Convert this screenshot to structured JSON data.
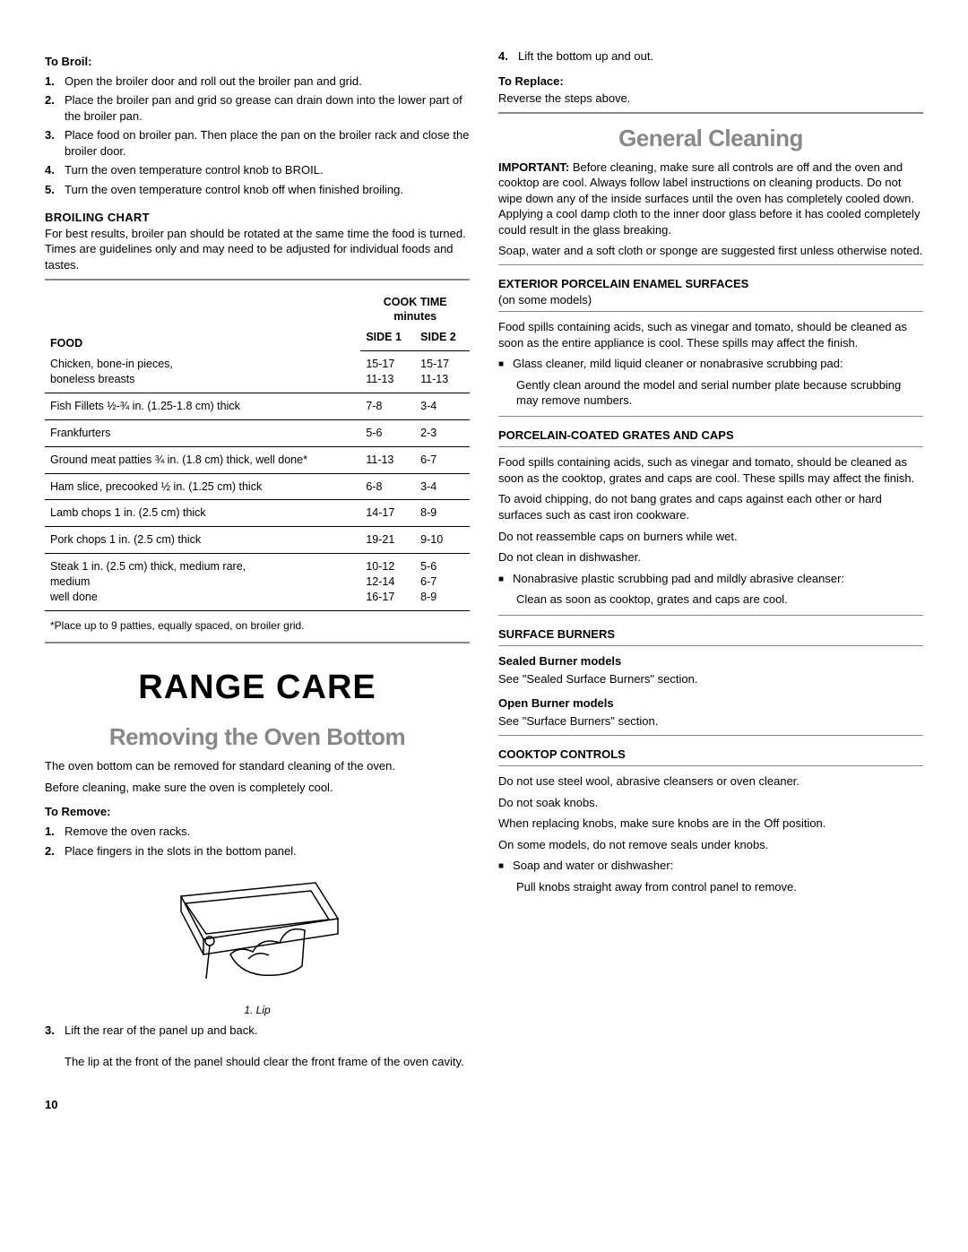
{
  "left": {
    "toBroil": {
      "heading": "To Broil:",
      "steps": [
        "Open the broiler door and roll out the broiler pan and grid.",
        "Place the broiler pan and grid so grease can drain down into the lower part of the broiler pan.",
        "Place food on broiler pan. Then place the pan on the broiler rack and close the broiler door.",
        "Turn the oven temperature control knob to BROIL.",
        "Turn the oven temperature control knob off when finished broiling."
      ]
    },
    "broilingChart": {
      "heading": "BROILING CHART",
      "intro": "For best results, broiler pan should be rotated at the same time the food is turned. Times are guidelines only and may need to be adjusted for individual foods and tastes.",
      "colFood": "FOOD",
      "colCookTime": "COOK TIME",
      "colMinutes": "minutes",
      "colSide1": "SIDE 1",
      "colSide2": "SIDE 2",
      "rows": [
        {
          "food": "Chicken, bone-in pieces,\nboneless breasts",
          "s1": "15-17\n11-13",
          "s2": "15-17\n11-13"
        },
        {
          "food": "Fish Fillets ½-¾ in. (1.25-1.8 cm) thick",
          "s1": "7-8",
          "s2": "3-4"
        },
        {
          "food": "Frankfurters",
          "s1": "5-6",
          "s2": "2-3"
        },
        {
          "food": "Ground meat patties ¾ in. (1.8 cm) thick, well done*",
          "s1": "11-13",
          "s2": "6-7"
        },
        {
          "food": "Ham slice, precooked ½ in. (1.25 cm) thick",
          "s1": "6-8",
          "s2": "3-4"
        },
        {
          "food": "Lamb chops 1 in. (2.5 cm) thick",
          "s1": "14-17",
          "s2": "8-9"
        },
        {
          "food": "Pork chops 1 in. (2.5 cm) thick",
          "s1": "19-21",
          "s2": "9-10"
        },
        {
          "food": "Steak 1 in. (2.5 cm) thick, medium rare,\nmedium\nwell done",
          "s1": "10-12\n12-14\n16-17",
          "s2": "5-6\n6-7\n8-9"
        }
      ],
      "footnote": "*Place up to 9 patties, equally spaced, on broiler grid."
    },
    "rangeCare": {
      "title": "RANGE CARE",
      "subTitle": "Removing the Oven Bottom",
      "p1": "The oven bottom can be removed for standard cleaning of the oven.",
      "p2": "Before cleaning, make sure the oven is completely cool.",
      "toRemoveHead": "To Remove:",
      "toRemoveSteps": [
        "Remove the oven racks.",
        "Place fingers in the slots in the bottom panel."
      ],
      "figCaption": "1. Lip",
      "step3a": "Lift the rear of the panel up and back.",
      "step3b": "The lip at the front of the panel should clear the front frame of the oven cavity."
    }
  },
  "right": {
    "step4": "Lift the bottom up and out.",
    "toReplaceHead": "To Replace:",
    "toReplaceBody": "Reverse the steps above.",
    "generalCleaning": {
      "title": "General Cleaning",
      "importantLabel": "IMPORTANT:",
      "importantBody": " Before cleaning, make sure all controls are off and the oven and cooktop are cool. Always follow label instructions on cleaning products. Do not wipe down any of the inside surfaces until the oven has completely cooled down. Applying a cool damp cloth to the inner door glass before it has cooled completely could result in the glass breaking.",
      "p2": "Soap, water and a soft cloth or sponge are suggested first unless otherwise noted."
    },
    "exterior": {
      "head": "EXTERIOR PORCELAIN ENAMEL SURFACES",
      "sub": "(on some models)",
      "p1": "Food spills containing acids, such as vinegar and tomato, should be cleaned as soon as the entire appliance is cool. These spills may affect the finish.",
      "bullet1": "Glass cleaner, mild liquid cleaner or nonabrasive scrubbing pad:",
      "note1": "Gently clean around the model and serial number plate because scrubbing may remove numbers."
    },
    "grates": {
      "head": "PORCELAIN-COATED GRATES AND CAPS",
      "p1": "Food spills containing acids, such as vinegar and tomato, should be cleaned as soon as the cooktop, grates and caps are cool. These spills may affect the finish.",
      "p2": "To avoid chipping, do not bang grates and caps against each other or hard surfaces such as cast iron cookware.",
      "p3": "Do not reassemble caps on burners while wet.",
      "p4": "Do not clean in dishwasher.",
      "bullet1": "Nonabrasive plastic scrubbing pad and mildly abrasive cleanser:",
      "note1": "Clean as soon as cooktop, grates and caps are cool."
    },
    "burners": {
      "head": "SURFACE BURNERS",
      "sealedHead": "Sealed Burner models",
      "sealedBody": "See \"Sealed Surface Burners\" section.",
      "openHead": "Open Burner models",
      "openBody": "See \"Surface Burners\" section."
    },
    "controls": {
      "head": "COOKTOP CONTROLS",
      "p1": "Do not use steel wool, abrasive cleansers or oven cleaner.",
      "p2": "Do not soak knobs.",
      "p3": "When replacing knobs, make sure knobs are in the Off position.",
      "p4": "On some models, do not remove seals under knobs.",
      "bullet1": "Soap and water or dishwasher:",
      "note1": "Pull knobs straight away from control panel to remove."
    }
  },
  "pageNum": "10"
}
